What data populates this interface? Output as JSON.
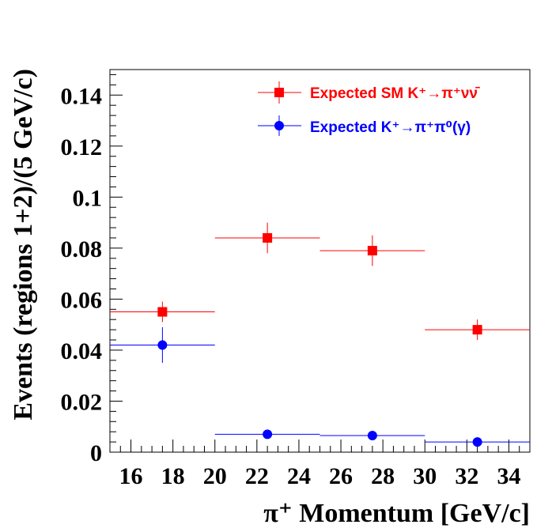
{
  "chart_data": {
    "type": "scatter",
    "xlabel": "π⁺ Momentum [GeV/c]",
    "ylabel": "Events (regions 1+2)/(5 GeV/c)",
    "xlim": [
      15,
      35
    ],
    "ylim": [
      0,
      0.15
    ],
    "x_ticks": [
      "16",
      "18",
      "20",
      "22",
      "24",
      "26",
      "28",
      "30",
      "32",
      "34"
    ],
    "x_tick_values": [
      16,
      18,
      20,
      22,
      24,
      26,
      28,
      30,
      32,
      34
    ],
    "y_ticks": [
      "0",
      "0.02",
      "0.04",
      "0.06",
      "0.08",
      "0.1",
      "0.12",
      "0.14"
    ],
    "y_tick_values": [
      0,
      0.02,
      0.04,
      0.06,
      0.08,
      0.1,
      0.12,
      0.14
    ],
    "grid": false,
    "legend_position": "top-right",
    "series": [
      {
        "name": "Expected SM K⁺→π⁺νν̄",
        "color": "#ff0000",
        "marker": "square",
        "points": [
          {
            "x": 17.5,
            "xlow": 15,
            "xhigh": 20,
            "y": 0.055,
            "yerr": 0.004
          },
          {
            "x": 22.5,
            "xlow": 20,
            "xhigh": 25,
            "y": 0.084,
            "yerr": 0.006
          },
          {
            "x": 27.5,
            "xlow": 25,
            "xhigh": 30,
            "y": 0.079,
            "yerr": 0.006
          },
          {
            "x": 32.5,
            "xlow": 30,
            "xhigh": 35,
            "y": 0.048,
            "yerr": 0.004
          }
        ]
      },
      {
        "name": "Expected K⁺→π⁺π⁰(γ)",
        "color": "#0000ff",
        "marker": "circle",
        "points": [
          {
            "x": 17.5,
            "xlow": 15,
            "xhigh": 20,
            "y": 0.042,
            "yerr": 0.007
          },
          {
            "x": 22.5,
            "xlow": 20,
            "xhigh": 25,
            "y": 0.007,
            "yerr": 0.0015
          },
          {
            "x": 27.5,
            "xlow": 25,
            "xhigh": 30,
            "y": 0.0065,
            "yerr": 0.0015
          },
          {
            "x": 32.5,
            "xlow": 30,
            "xhigh": 35,
            "y": 0.004,
            "yerr": 0.0012
          }
        ]
      }
    ]
  }
}
